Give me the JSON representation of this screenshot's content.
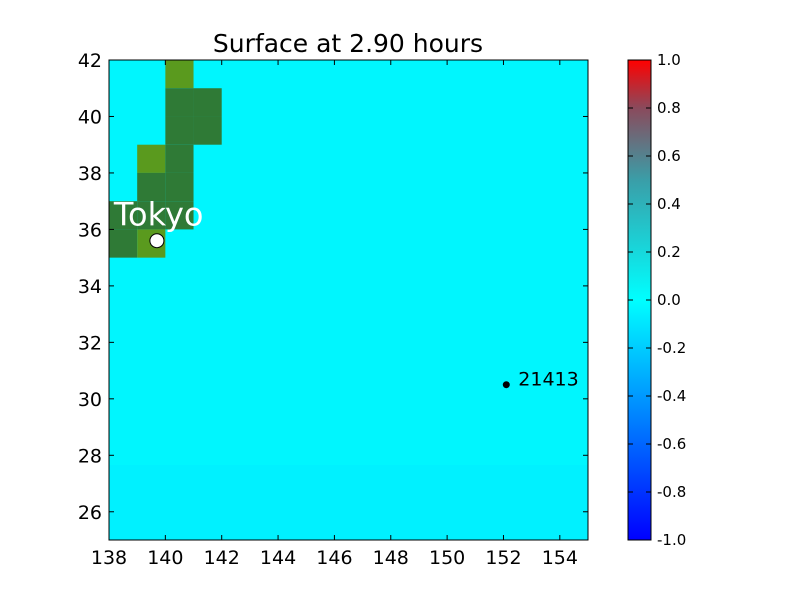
{
  "chart_data": {
    "type": "heatmap",
    "title": "Surface at 2.90 hours",
    "xlim": [
      138,
      155
    ],
    "ylim": [
      25,
      42
    ],
    "xticks": [
      "138",
      "140",
      "142",
      "144",
      "146",
      "148",
      "150",
      "152",
      "154"
    ],
    "yticks": [
      "26",
      "28",
      "30",
      "32",
      "34",
      "36",
      "38",
      "40",
      "42"
    ],
    "background_value": 0.0,
    "land_cells": [
      {
        "lon": 140,
        "lat": 41,
        "color": "#5a9a1e"
      },
      {
        "lon": 140,
        "lat": 40,
        "color": "#2f7a36"
      },
      {
        "lon": 141,
        "lat": 40,
        "color": "#2f7a36"
      },
      {
        "lon": 140,
        "lat": 39,
        "color": "#2f7a36"
      },
      {
        "lon": 141,
        "lat": 39,
        "color": "#2f7a36"
      },
      {
        "lon": 139,
        "lat": 38,
        "color": "#5a9a1e"
      },
      {
        "lon": 140,
        "lat": 38,
        "color": "#2f7a36"
      },
      {
        "lon": 139,
        "lat": 37,
        "color": "#2f7a36"
      },
      {
        "lon": 140,
        "lat": 37,
        "color": "#2f7a36"
      },
      {
        "lon": 139,
        "lat": 36,
        "color": "#2f7a36"
      },
      {
        "lon": 140,
        "lat": 36,
        "color": "#2f7a36"
      },
      {
        "lon": 138,
        "lat": 36,
        "color": "#2f7a36"
      },
      {
        "lon": 138,
        "lat": 35,
        "color": "#2f7a36"
      },
      {
        "lon": 139,
        "lat": 35,
        "color": "#5a9a1e"
      }
    ],
    "markers": [
      {
        "name": "Tokyo",
        "lon": 139.7,
        "lat": 35.6,
        "style": "open-circle"
      },
      {
        "name": "21413",
        "lon": 152.1,
        "lat": 30.5,
        "style": "dot"
      }
    ],
    "colorbar": {
      "min": -1.0,
      "max": 1.0,
      "ticks": [
        "-1.0",
        "-0.8",
        "-0.6",
        "-0.4",
        "-0.2",
        "0.0",
        "0.2",
        "0.4",
        "0.6",
        "0.8",
        "1.0"
      ],
      "colors": {
        "low": "#0000ff",
        "mid": "#00ffff",
        "high": "#ff0000"
      }
    }
  },
  "labels": {
    "title": "Surface at 2.90 hours",
    "city": "Tokyo",
    "buoy": "21413"
  }
}
